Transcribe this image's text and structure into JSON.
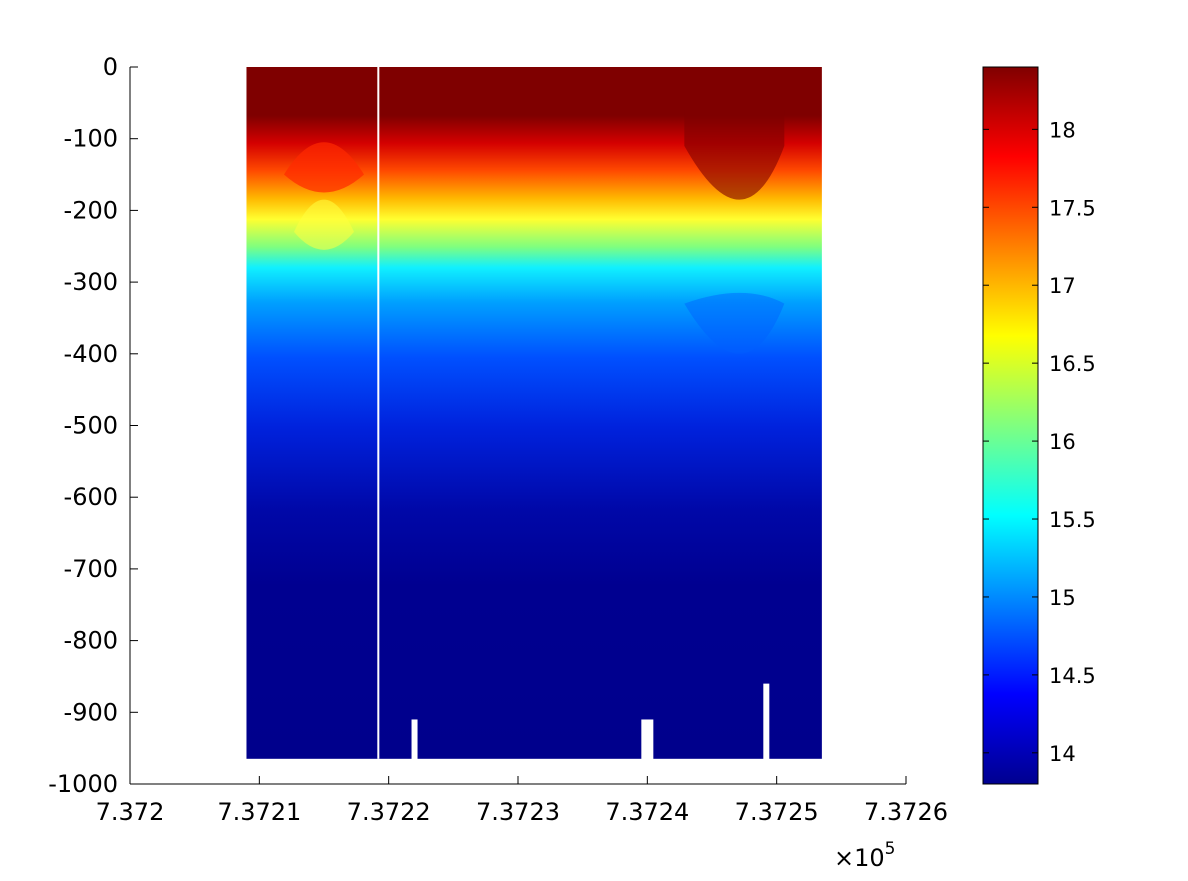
{
  "chart_data": {
    "type": "heatmap",
    "title": "",
    "xlabel": "",
    "ylabel": "",
    "x_multiplier_label": {
      "base": "×10",
      "exponent": "5"
    },
    "xlim": [
      737200,
      737260
    ],
    "ylim": [
      -1000,
      0
    ],
    "xticks": [
      737200,
      737210,
      737220,
      737230,
      737240,
      737250,
      737260
    ],
    "xtick_labels": [
      "7.372",
      "7.3721",
      "7.3722",
      "7.3723",
      "7.3724",
      "7.3725",
      "7.3726"
    ],
    "yticks": [
      0,
      -100,
      -200,
      -300,
      -400,
      -500,
      -600,
      -700,
      -800,
      -900,
      -1000
    ],
    "ytick_labels": [
      "0",
      "-100",
      "-200",
      "-300",
      "-400",
      "-500",
      "-600",
      "-700",
      "-800",
      "-900",
      "-1000"
    ],
    "data_x_range": [
      737209,
      737253.5
    ],
    "data_depth_range": [
      0,
      -965
    ],
    "gaps_x": [
      737219.2
    ],
    "colormap": "jet",
    "clim": [
      13.8,
      18.4
    ],
    "colorbar": {
      "ticks": [
        14,
        14.5,
        15,
        15.5,
        16,
        16.5,
        17,
        17.5,
        18
      ],
      "tick_labels": [
        "14",
        "14.5",
        "15",
        "15.5",
        "16",
        "16.5",
        "17",
        "17.5",
        "18"
      ],
      "location": "right"
    },
    "value_description": "warm layer (>18) from 0 to about -100; transition 17 to 15.5 between about -100 and -300; cold (~14) below about -500",
    "grid": false
  }
}
